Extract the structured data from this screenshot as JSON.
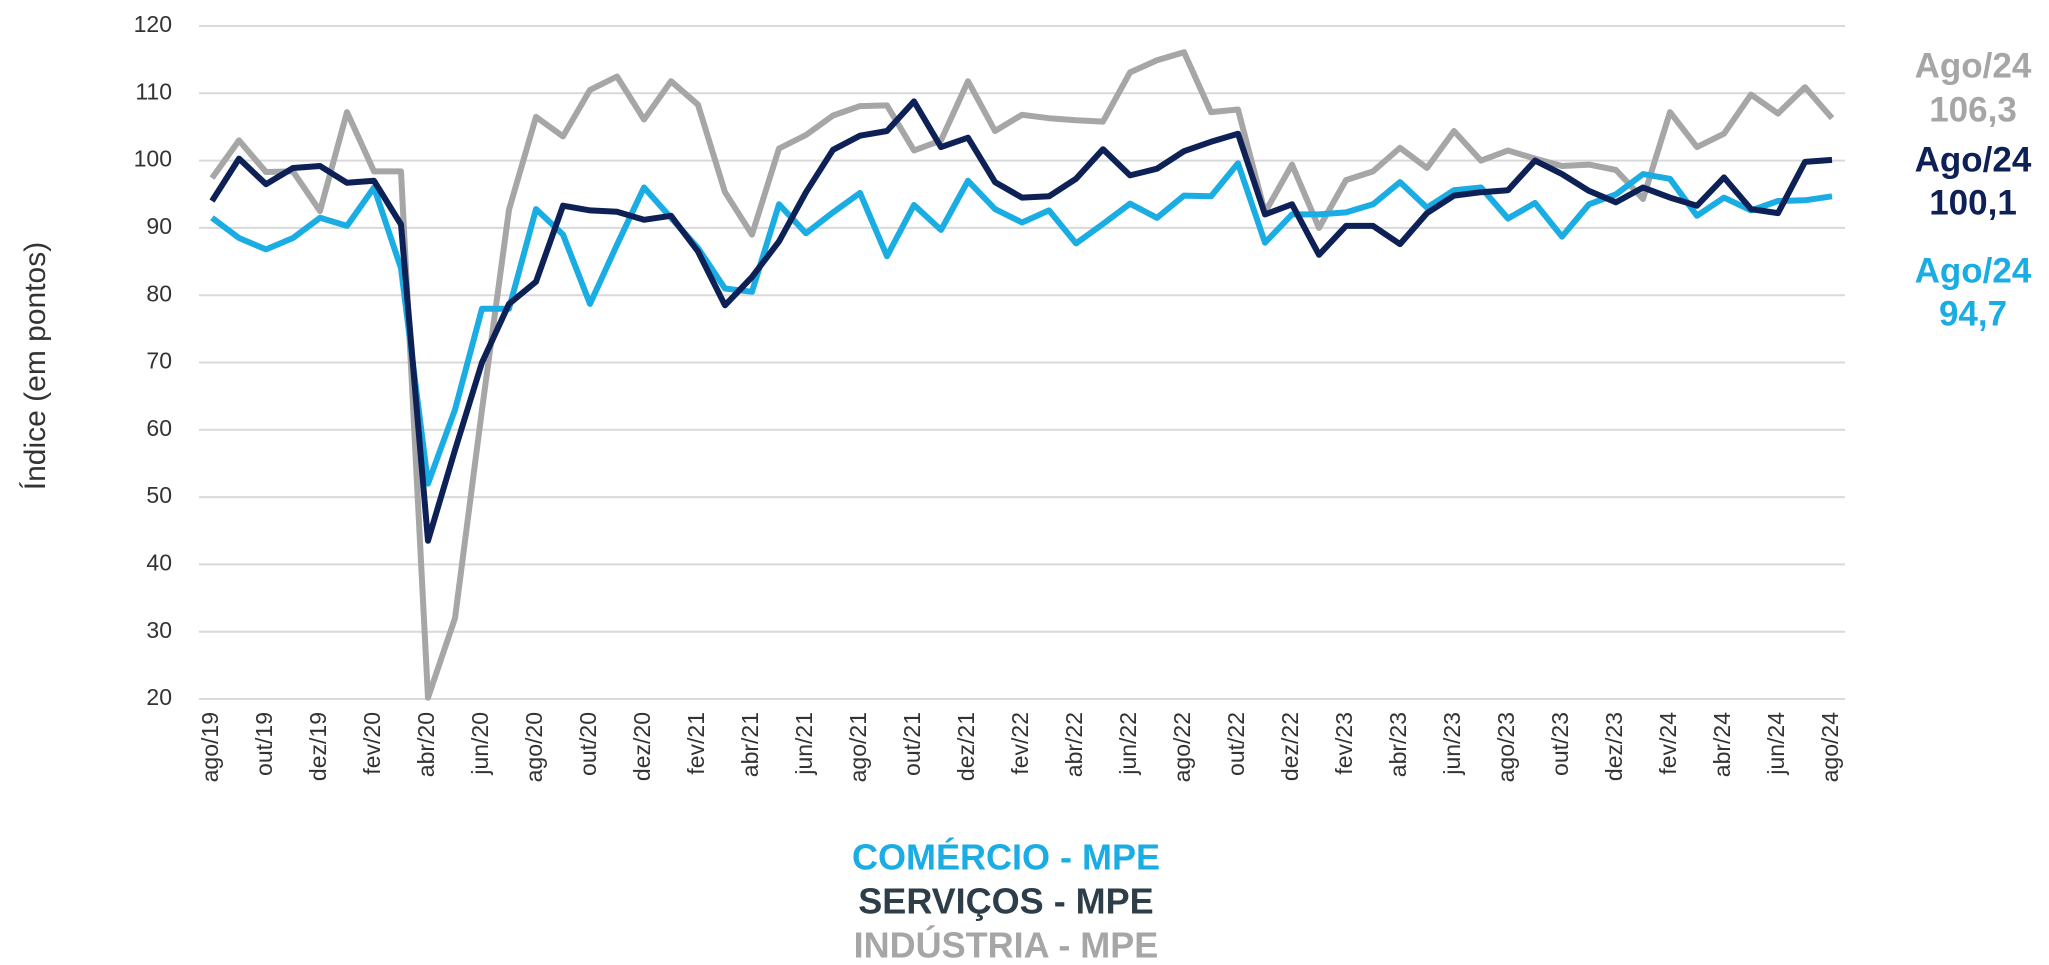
{
  "chart_data": {
    "type": "line",
    "y_label": "Índice (em pontos)",
    "categories": [
      "ago/19",
      null,
      "out/19",
      null,
      "dez/19",
      null,
      "fev/20",
      null,
      "abr/20",
      null,
      "jun/20",
      null,
      "ago/20",
      null,
      "out/20",
      null,
      "dez/20",
      null,
      "fev/21",
      null,
      "abr/21",
      null,
      "jun/21",
      null,
      "ago/21",
      null,
      "out/21",
      null,
      "dez/21",
      null,
      "fev/22",
      null,
      "abr/22",
      null,
      "jun/22",
      null,
      "ago/22",
      null,
      "out/22",
      null,
      "dez/22",
      null,
      "fev/23",
      null,
      "abr/23",
      null,
      "jun/23",
      null,
      "ago/23",
      null,
      "out/23",
      null,
      "dez/23",
      null,
      "fev/24",
      null,
      "abr/24",
      null,
      "jun/24",
      null,
      "ago/24"
    ],
    "series": [
      {
        "name": "COMÉRCIO - MPE",
        "color": "#1aade4",
        "end_label": [
          "Ago/24",
          "94,7"
        ],
        "values": [
          91.5,
          88.5,
          86.8,
          88.5,
          91.5,
          90.3,
          96,
          84,
          52,
          63,
          78,
          78,
          92.8,
          89,
          78.7,
          87.5,
          96,
          91.5,
          87,
          81,
          80.5,
          93.5,
          89.2,
          92.3,
          95.2,
          85.8,
          93.4,
          89.7,
          97,
          92.8,
          90.8,
          92.6,
          87.7,
          90.6,
          93.6,
          91.5,
          94.8,
          94.7,
          99.6,
          87.8,
          92,
          92,
          92.3,
          93.5,
          96.8,
          93,
          95.6,
          96,
          91.4,
          93.7,
          88.7,
          93.5,
          95,
          98,
          97.3,
          91.8,
          94.5,
          92.6,
          94,
          94.1,
          94.7
        ]
      },
      {
        "name": "SERVIÇOS - MPE",
        "color": "#0d2157",
        "end_label": [
          "Ago/24",
          "100,1"
        ],
        "values": [
          94,
          100.3,
          96.5,
          98.9,
          99.2,
          96.7,
          97,
          90.5,
          43.5,
          57,
          70,
          78.7,
          82,
          93.3,
          92.6,
          92.4,
          91.2,
          91.8,
          86.5,
          78.5,
          82.7,
          88,
          95.3,
          101.6,
          103.7,
          104.4,
          108.8,
          102,
          103.4,
          96.8,
          94.5,
          94.7,
          97.3,
          101.7,
          97.8,
          98.8,
          101.4,
          102.8,
          104,
          92,
          93.5,
          86,
          90.3,
          90.3,
          87.6,
          92.2,
          94.8,
          95.3,
          95.6,
          100,
          98,
          95.5,
          93.8,
          96,
          94.5,
          93.3,
          97.5,
          92.8,
          92.2,
          99.8,
          100.1
        ]
      },
      {
        "name": "INDÚSTRIA - MPE",
        "color": "#a6a6a6",
        "end_label": [
          "Ago/24",
          "106,3"
        ],
        "values": [
          97.4,
          103,
          98.3,
          98.4,
          92.5,
          107.2,
          98.4,
          98.4,
          20.2,
          32,
          63,
          92.7,
          106.5,
          103.6,
          110.5,
          112.5,
          106.1,
          111.8,
          108.3,
          95.3,
          89,
          101.8,
          103.8,
          106.7,
          108.1,
          108.2,
          101.5,
          103,
          111.8,
          104.4,
          106.8,
          106.3,
          106,
          105.8,
          113.1,
          114.9,
          116.1,
          107.2,
          107.6,
          92.3,
          99.4,
          90,
          97.1,
          98.4,
          101.9,
          98.9,
          104.4,
          100,
          101.5,
          100.3,
          99.2,
          99.4,
          98.6,
          94.3,
          107.2,
          102,
          104,
          109.8,
          107,
          110.9,
          106.3
        ]
      }
    ],
    "ylim": [
      20,
      120
    ],
    "yticks": [
      20,
      30,
      40,
      50,
      60,
      70,
      80,
      90,
      100,
      110,
      120
    ],
    "grid": true
  }
}
